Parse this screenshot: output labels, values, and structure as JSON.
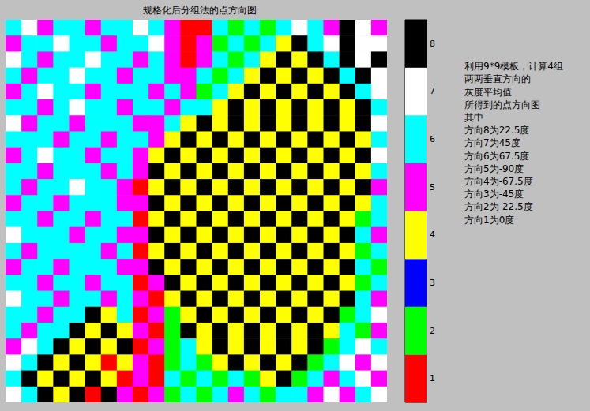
{
  "chart_data": {
    "type": "heatmap",
    "title": "规格化后分组法的点方向图",
    "annotations": [
      "利用9*9模板，计算4组",
      "两两垂直方向的",
      "灰度平均值",
      "所得到的点方向图",
      "其中",
      "方向8为22.5度",
      "方向7为45度",
      "方向6为67.5度",
      "方向5为-90度",
      "方向4为-67.5度",
      "方向3为-45度",
      "方向2为-22.5度",
      "方向1为0度"
    ],
    "tick_labels": false,
    "colors": [
      "#ff0000",
      "#00ff00",
      "#0000ff",
      "#ffff00",
      "#ff00ff",
      "#00ffff",
      "#ffffff",
      "#000000"
    ],
    "color_range": [
      0.5,
      8.5
    ],
    "color_ticks": [
      1,
      2,
      3,
      4,
      5,
      6,
      7,
      8
    ],
    "cells": [
      [
        6,
        7,
        5,
        6,
        6,
        5,
        6,
        6,
        7,
        6,
        5,
        1,
        1,
        6,
        2,
        6,
        2,
        6,
        7,
        6,
        5,
        8,
        7,
        5
      ],
      [
        5,
        6,
        6,
        7,
        6,
        6,
        5,
        6,
        6,
        7,
        5,
        1,
        5,
        2,
        6,
        2,
        6,
        4,
        8,
        6,
        7,
        8,
        7,
        7
      ],
      [
        7,
        6,
        5,
        6,
        6,
        7,
        6,
        6,
        5,
        6,
        5,
        1,
        5,
        6,
        2,
        6,
        4,
        8,
        4,
        8,
        6,
        8,
        7,
        8
      ],
      [
        6,
        5,
        6,
        6,
        7,
        6,
        6,
        5,
        6,
        6,
        5,
        5,
        6,
        2,
        6,
        4,
        8,
        4,
        8,
        4,
        8,
        6,
        8,
        7
      ],
      [
        5,
        6,
        7,
        6,
        6,
        5,
        6,
        6,
        6,
        5,
        6,
        5,
        2,
        6,
        4,
        8,
        4,
        8,
        4,
        8,
        4,
        8,
        6,
        7
      ],
      [
        6,
        6,
        5,
        6,
        7,
        6,
        6,
        5,
        6,
        6,
        5,
        6,
        6,
        4,
        8,
        4,
        8,
        4,
        8,
        4,
        8,
        4,
        8,
        6
      ],
      [
        7,
        5,
        6,
        6,
        5,
        6,
        6,
        6,
        5,
        5,
        6,
        4,
        8,
        4,
        8,
        4,
        8,
        4,
        8,
        4,
        8,
        4,
        8,
        7
      ],
      [
        6,
        6,
        6,
        5,
        6,
        6,
        5,
        6,
        6,
        5,
        4,
        8,
        4,
        8,
        4,
        8,
        4,
        8,
        4,
        8,
        4,
        8,
        4,
        6
      ],
      [
        5,
        6,
        7,
        6,
        6,
        5,
        6,
        6,
        5,
        4,
        8,
        4,
        8,
        4,
        8,
        4,
        8,
        4,
        8,
        4,
        8,
        4,
        8,
        7
      ],
      [
        6,
        6,
        5,
        6,
        6,
        6,
        5,
        6,
        5,
        8,
        4,
        8,
        4,
        8,
        4,
        8,
        4,
        8,
        4,
        8,
        4,
        8,
        4,
        6
      ],
      [
        6,
        5,
        6,
        6,
        7,
        6,
        6,
        5,
        1,
        4,
        8,
        4,
        8,
        4,
        8,
        4,
        8,
        4,
        8,
        4,
        8,
        4,
        8,
        5
      ],
      [
        5,
        6,
        6,
        5,
        6,
        6,
        6,
        5,
        5,
        8,
        4,
        8,
        4,
        8,
        4,
        8,
        4,
        8,
        4,
        8,
        4,
        8,
        4,
        6
      ],
      [
        6,
        6,
        5,
        6,
        6,
        5,
        6,
        6,
        1,
        4,
        8,
        4,
        8,
        4,
        8,
        4,
        8,
        4,
        8,
        4,
        8,
        4,
        2,
        6
      ],
      [
        7,
        6,
        6,
        6,
        5,
        6,
        6,
        5,
        5,
        8,
        4,
        8,
        4,
        8,
        4,
        8,
        4,
        8,
        4,
        8,
        4,
        8,
        6,
        5
      ],
      [
        6,
        5,
        6,
        6,
        6,
        6,
        5,
        6,
        1,
        4,
        8,
        4,
        8,
        4,
        8,
        4,
        8,
        4,
        8,
        4,
        8,
        4,
        2,
        6
      ],
      [
        5,
        6,
        6,
        5,
        6,
        6,
        6,
        5,
        5,
        8,
        4,
        8,
        4,
        8,
        4,
        8,
        4,
        8,
        4,
        8,
        4,
        8,
        6,
        2
      ],
      [
        6,
        6,
        5,
        6,
        6,
        5,
        6,
        6,
        1,
        5,
        8,
        4,
        8,
        4,
        8,
        4,
        8,
        4,
        8,
        4,
        8,
        4,
        2,
        6
      ],
      [
        7,
        6,
        6,
        5,
        6,
        6,
        5,
        6,
        5,
        1,
        4,
        8,
        4,
        8,
        4,
        8,
        4,
        8,
        4,
        8,
        4,
        8,
        6,
        5
      ],
      [
        6,
        6,
        5,
        6,
        6,
        8,
        4,
        6,
        1,
        5,
        2,
        4,
        8,
        4,
        8,
        4,
        8,
        4,
        8,
        4,
        8,
        2,
        6,
        7
      ],
      [
        6,
        5,
        6,
        6,
        8,
        4,
        8,
        4,
        5,
        1,
        2,
        8,
        4,
        8,
        4,
        8,
        4,
        8,
        4,
        8,
        4,
        6,
        2,
        5
      ],
      [
        5,
        7,
        6,
        8,
        4,
        8,
        4,
        8,
        1,
        5,
        2,
        6,
        4,
        8,
        4,
        8,
        4,
        8,
        4,
        8,
        2,
        6,
        7,
        6
      ],
      [
        7,
        6,
        8,
        4,
        8,
        4,
        1,
        4,
        5,
        1,
        2,
        6,
        2,
        4,
        8,
        4,
        8,
        4,
        8,
        2,
        6,
        7,
        5,
        7
      ],
      [
        6,
        8,
        4,
        8,
        4,
        8,
        4,
        1,
        5,
        1,
        6,
        2,
        6,
        2,
        6,
        2,
        4,
        8,
        2,
        6,
        5,
        6,
        7,
        5
      ],
      [
        7,
        6,
        8,
        4,
        8,
        1,
        8,
        5,
        1,
        5,
        2,
        6,
        2,
        6,
        5,
        6,
        2,
        6,
        6,
        5,
        7,
        5,
        6,
        7
      ]
    ]
  }
}
